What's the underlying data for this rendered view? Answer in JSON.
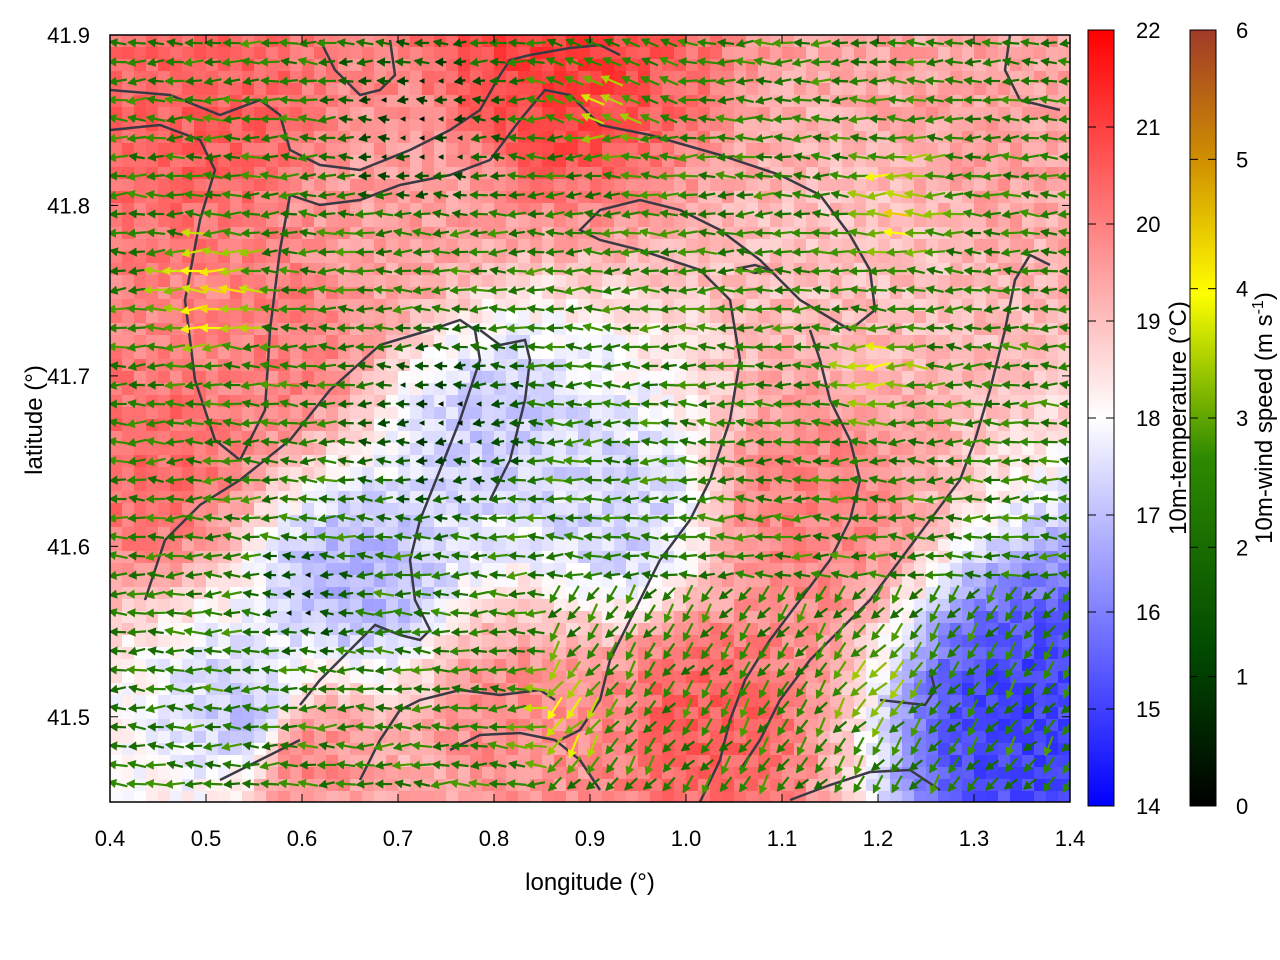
{
  "chart_data": {
    "type": "heatmap",
    "xlabel": "longitude (°)",
    "ylabel": "latitude (°)",
    "xlim": [
      0.4,
      1.4
    ],
    "ylim": [
      41.45,
      41.9
    ],
    "xticks": [
      "0.4",
      "0.5",
      "0.6",
      "0.7",
      "0.8",
      "0.9",
      "1.0",
      "1.1",
      "1.2",
      "1.3",
      "1.4"
    ],
    "yticks": [
      "41.5",
      "41.6",
      "41.7",
      "41.8",
      "41.9"
    ],
    "grid": false,
    "temperature_scale": {
      "label": "10m-temperature (°C)",
      "range": [
        14,
        22
      ],
      "ticks": [
        "14",
        "15",
        "16",
        "17",
        "18",
        "19",
        "20",
        "21",
        "22"
      ],
      "colors": [
        "#0000ff",
        "#ffffff",
        "#ff0000"
      ]
    },
    "wind_scale": {
      "label_main": "10m-wind speed (m s",
      "label_sup": "-1",
      "label_end": ")",
      "range": [
        0,
        6
      ],
      "ticks": [
        "0",
        "1",
        "2",
        "3",
        "4",
        "5",
        "6"
      ],
      "colors": [
        "#000000",
        "#005000",
        "#00a000",
        "#ffff00",
        "#c07000",
        "#a03020"
      ]
    },
    "temperature_regions": [
      {
        "lon": 0.5,
        "lat": 41.85,
        "temp": 20.5
      },
      {
        "lon": 0.58,
        "lat": 41.72,
        "temp": 20.0
      },
      {
        "lon": 0.45,
        "lat": 41.65,
        "temp": 20.3
      },
      {
        "lon": 0.86,
        "lat": 41.88,
        "temp": 21.0
      },
      {
        "lon": 0.7,
        "lat": 41.8,
        "temp": 19.5
      },
      {
        "lon": 0.8,
        "lat": 41.67,
        "temp": 17.2
      },
      {
        "lon": 0.66,
        "lat": 41.58,
        "temp": 16.8
      },
      {
        "lon": 0.55,
        "lat": 41.5,
        "temp": 17.0
      },
      {
        "lon": 0.93,
        "lat": 41.62,
        "temp": 17.3
      },
      {
        "lon": 1.12,
        "lat": 41.62,
        "temp": 20.0
      },
      {
        "lon": 1.02,
        "lat": 41.5,
        "temp": 20.5
      },
      {
        "lon": 1.2,
        "lat": 41.78,
        "temp": 19.0
      },
      {
        "lon": 1.35,
        "lat": 41.5,
        "temp": 15.0
      },
      {
        "lon": 0.6,
        "lat": 41.48,
        "temp": 20.0
      },
      {
        "lon": 0.82,
        "lat": 41.5,
        "temp": 19.8
      },
      {
        "lon": 1.3,
        "lat": 41.85,
        "temp": 19.5
      }
    ],
    "wind_field": "gridded 10 m wind vectors, mostly from the east; calm (<1 m/s) over the central basin, 2–3 m/s on the margins, up to ~4.5 m/s near 0.5°E 41.75°N and 1.2°E 41.8°N"
  }
}
